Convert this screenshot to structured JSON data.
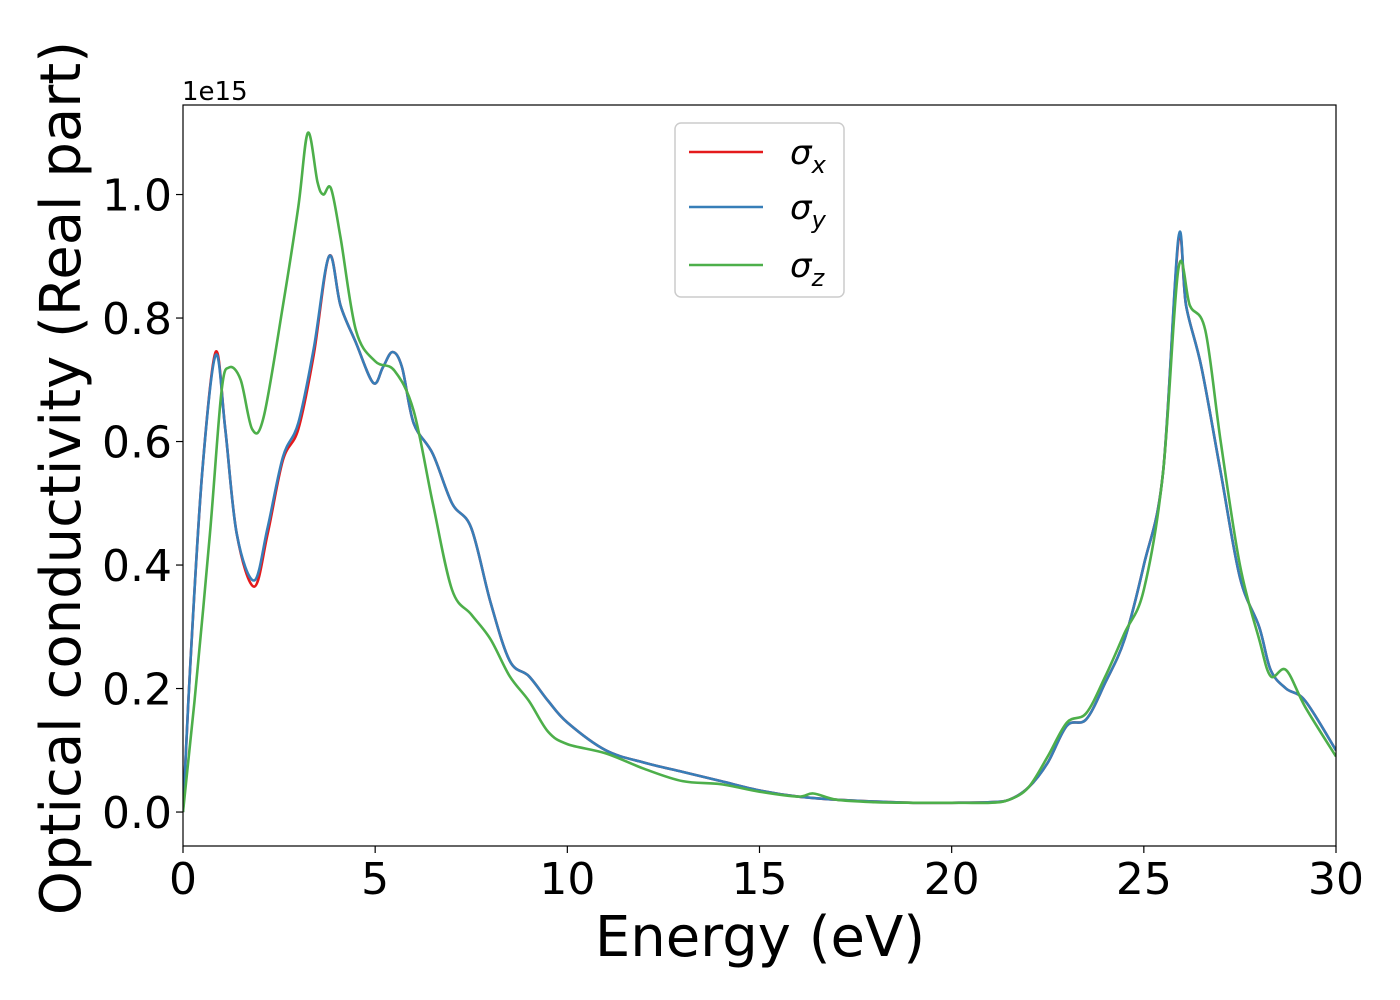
{
  "chart_data": {
    "type": "line",
    "title": "",
    "xlabel": "Energy (eV)",
    "ylabel": "Optical conductivity (Real part)",
    "y_offset_label": "1e15",
    "xlim": [
      0,
      30
    ],
    "ylim": [
      -0.055,
      1.145
    ],
    "xticks": [
      0,
      5,
      10,
      15,
      20,
      25,
      30
    ],
    "xtick_labels": [
      "0",
      "5",
      "10",
      "15",
      "20",
      "25",
      "30"
    ],
    "yticks": [
      0.0,
      0.2,
      0.4,
      0.6,
      0.8,
      1.0
    ],
    "ytick_labels": [
      "0.0",
      "0.2",
      "0.4",
      "0.6",
      "0.8",
      "1.0"
    ],
    "grid": false,
    "legend_position": "top-center",
    "series": [
      {
        "name": "σx",
        "symbol": "σ",
        "subscript": "x",
        "color": "#e41a1c",
        "x": [
          0,
          0.2,
          0.5,
          0.85,
          1.1,
          1.4,
          1.85,
          2.2,
          2.6,
          3.0,
          3.4,
          3.8,
          4.1,
          4.5,
          4.95,
          5.2,
          5.45,
          5.7,
          6.0,
          6.5,
          7.0,
          7.5,
          8.0,
          8.5,
          9.0,
          9.5,
          10.0,
          11.0,
          12.0,
          13.0,
          14.0,
          15.0,
          16.0,
          17.0,
          18.0,
          19.0,
          20.0,
          21.0,
          21.5,
          22.0,
          22.5,
          23.0,
          23.5,
          24.0,
          24.5,
          25.0,
          25.5,
          25.9,
          26.1,
          26.5,
          27.0,
          27.5,
          28.0,
          28.3,
          28.7,
          29.2,
          30.0
        ],
        "y": [
          0.0,
          0.25,
          0.55,
          0.745,
          0.62,
          0.45,
          0.365,
          0.45,
          0.57,
          0.62,
          0.74,
          0.9,
          0.82,
          0.76,
          0.695,
          0.72,
          0.745,
          0.72,
          0.63,
          0.58,
          0.5,
          0.46,
          0.34,
          0.245,
          0.22,
          0.18,
          0.145,
          0.1,
          0.08,
          0.065,
          0.05,
          0.035,
          0.025,
          0.02,
          0.017,
          0.015,
          0.015,
          0.016,
          0.02,
          0.04,
          0.08,
          0.14,
          0.15,
          0.21,
          0.28,
          0.4,
          0.55,
          0.925,
          0.82,
          0.72,
          0.55,
          0.38,
          0.3,
          0.23,
          0.2,
          0.18,
          0.1
        ]
      },
      {
        "name": "σy",
        "symbol": "σ",
        "subscript": "y",
        "color": "#377eb8",
        "x": [
          0,
          0.2,
          0.5,
          0.85,
          1.1,
          1.4,
          1.85,
          2.2,
          2.6,
          3.0,
          3.4,
          3.8,
          4.1,
          4.5,
          4.95,
          5.2,
          5.45,
          5.7,
          6.0,
          6.5,
          7.0,
          7.5,
          8.0,
          8.5,
          9.0,
          9.5,
          10.0,
          11.0,
          12.0,
          13.0,
          14.0,
          15.0,
          16.0,
          17.0,
          18.0,
          19.0,
          20.0,
          21.0,
          21.5,
          22.0,
          22.5,
          23.0,
          23.5,
          24.0,
          24.5,
          25.0,
          25.5,
          25.9,
          26.1,
          26.5,
          27.0,
          27.5,
          28.0,
          28.3,
          28.7,
          29.2,
          30.0
        ],
        "y": [
          0.0,
          0.25,
          0.55,
          0.74,
          0.62,
          0.45,
          0.375,
          0.46,
          0.575,
          0.63,
          0.75,
          0.9,
          0.82,
          0.76,
          0.695,
          0.72,
          0.745,
          0.72,
          0.63,
          0.58,
          0.5,
          0.46,
          0.34,
          0.245,
          0.22,
          0.18,
          0.145,
          0.1,
          0.08,
          0.065,
          0.05,
          0.035,
          0.025,
          0.02,
          0.017,
          0.015,
          0.015,
          0.016,
          0.02,
          0.04,
          0.08,
          0.14,
          0.15,
          0.21,
          0.28,
          0.4,
          0.55,
          0.93,
          0.82,
          0.72,
          0.55,
          0.38,
          0.3,
          0.23,
          0.2,
          0.18,
          0.1
        ]
      },
      {
        "name": "σz",
        "symbol": "σ",
        "subscript": "z",
        "color": "#4daf4a",
        "x": [
          0,
          0.3,
          0.7,
          1.0,
          1.2,
          1.5,
          1.8,
          2.1,
          2.6,
          3.0,
          3.25,
          3.5,
          3.65,
          3.85,
          4.1,
          4.5,
          5.0,
          5.5,
          6.0,
          6.5,
          7.0,
          7.5,
          8.0,
          8.5,
          9.0,
          9.5,
          10.0,
          11.0,
          12.0,
          13.0,
          14.0,
          15.0,
          16.0,
          16.4,
          17.0,
          18.0,
          19.0,
          20.0,
          21.0,
          21.5,
          22.0,
          22.5,
          23.0,
          23.5,
          24.0,
          24.5,
          25.0,
          25.5,
          25.9,
          26.2,
          26.6,
          27.0,
          27.5,
          28.0,
          28.3,
          28.7,
          29.2,
          30.0
        ],
        "y": [
          0.0,
          0.18,
          0.45,
          0.68,
          0.72,
          0.7,
          0.62,
          0.64,
          0.82,
          0.98,
          1.1,
          1.02,
          1.0,
          1.01,
          0.93,
          0.78,
          0.73,
          0.715,
          0.65,
          0.5,
          0.36,
          0.32,
          0.28,
          0.22,
          0.18,
          0.13,
          0.11,
          0.095,
          0.07,
          0.05,
          0.045,
          0.033,
          0.025,
          0.03,
          0.02,
          0.016,
          0.015,
          0.015,
          0.015,
          0.02,
          0.04,
          0.09,
          0.145,
          0.16,
          0.22,
          0.29,
          0.36,
          0.55,
          0.88,
          0.82,
          0.78,
          0.6,
          0.4,
          0.28,
          0.22,
          0.23,
          0.17,
          0.09
        ]
      }
    ]
  }
}
